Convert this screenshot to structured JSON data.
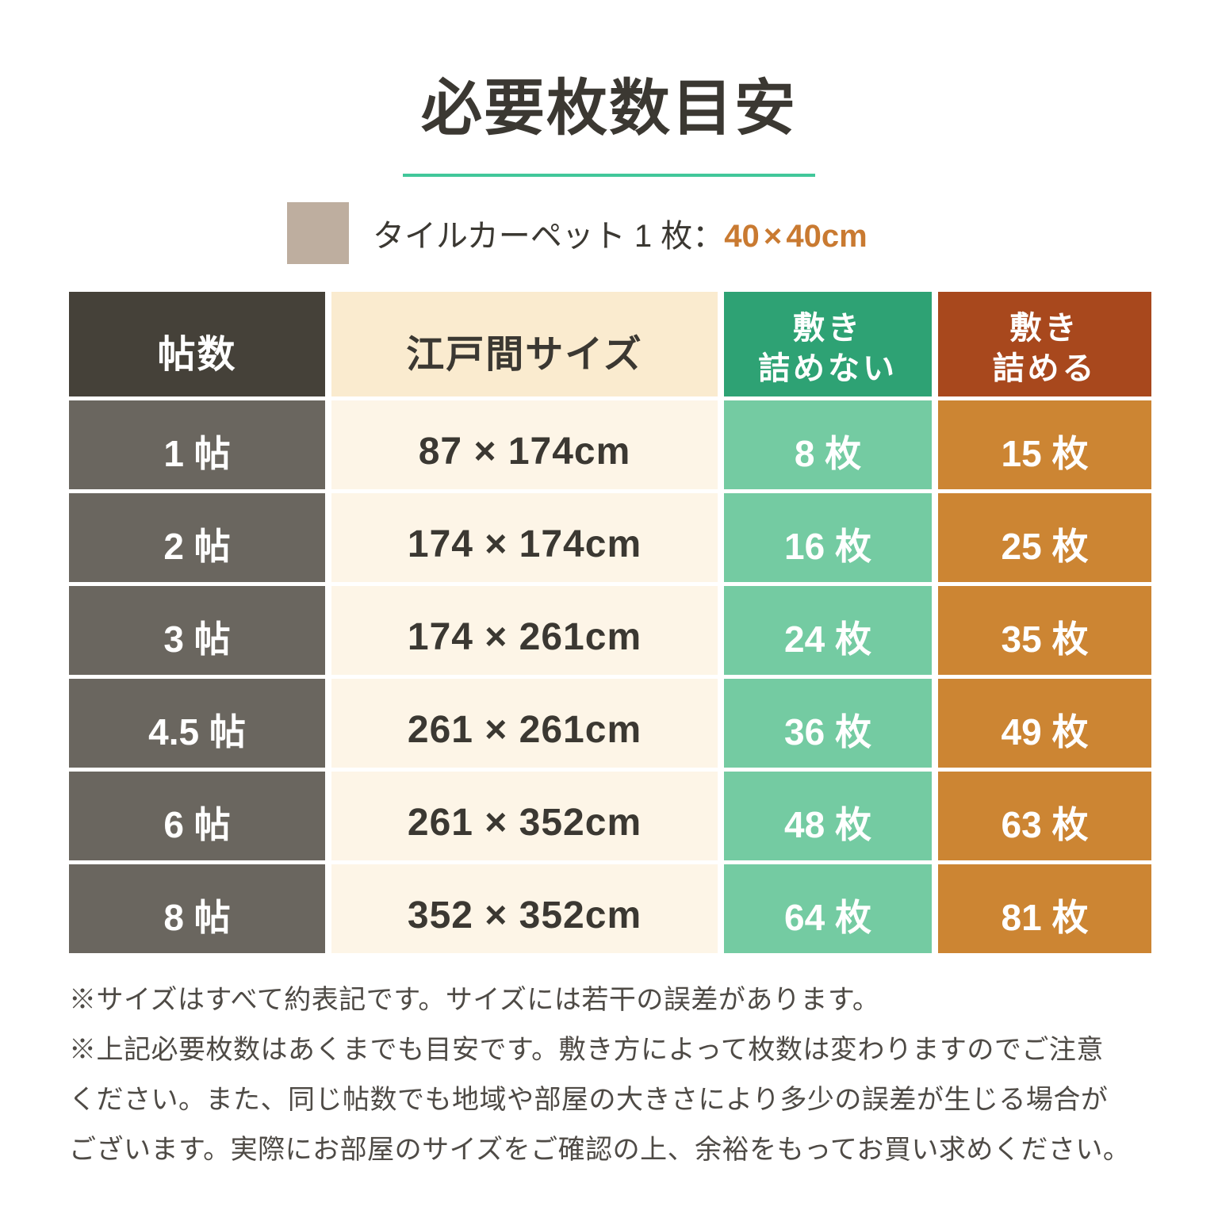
{
  "title": "必要枚数目安",
  "accent_underline_color": "#41c79a",
  "legend": {
    "swatch_color": "#beae9f",
    "label": "タイルカーペット 1 枚：",
    "size_value": "40 × 40cm",
    "size_color": "#c97a31"
  },
  "table": {
    "headers": {
      "col1": "帖数",
      "col2": "江戸間サイズ",
      "col3_line1": "敷き",
      "col3_line2": "詰めない",
      "col4_line1": "敷き",
      "col4_line2": "詰める"
    },
    "rows": [
      {
        "jo": "1 帖",
        "size": "87 × 174cm",
        "loose": "8 枚",
        "packed": "15 枚"
      },
      {
        "jo": "2 帖",
        "size": "174 × 174cm",
        "loose": "16 枚",
        "packed": "25 枚"
      },
      {
        "jo": "3 帖",
        "size": "174 × 261cm",
        "loose": "24 枚",
        "packed": "35 枚"
      },
      {
        "jo": "4.5 帖",
        "size": "261 × 261cm",
        "loose": "36 枚",
        "packed": "49 枚"
      },
      {
        "jo": "6 帖",
        "size": "261 × 352cm",
        "loose": "48 枚",
        "packed": "63 枚"
      },
      {
        "jo": "8 帖",
        "size": "352 × 352cm",
        "loose": "64 枚",
        "packed": "81 枚"
      }
    ]
  },
  "notes": {
    "lines": [
      "※サイズはすべて約表記です。サイズには若干の誤差があります。",
      "※上記必要枚数はあくまでも目安です。敷き方によって枚数は変わりますのでご注意",
      "ください。また、同じ帖数でも地域や部屋の大きさにより多少の誤差が生じる場合が",
      "ございます。実際にお部屋のサイズをご確認の上、余裕をもってお買い求めください。"
    ]
  }
}
